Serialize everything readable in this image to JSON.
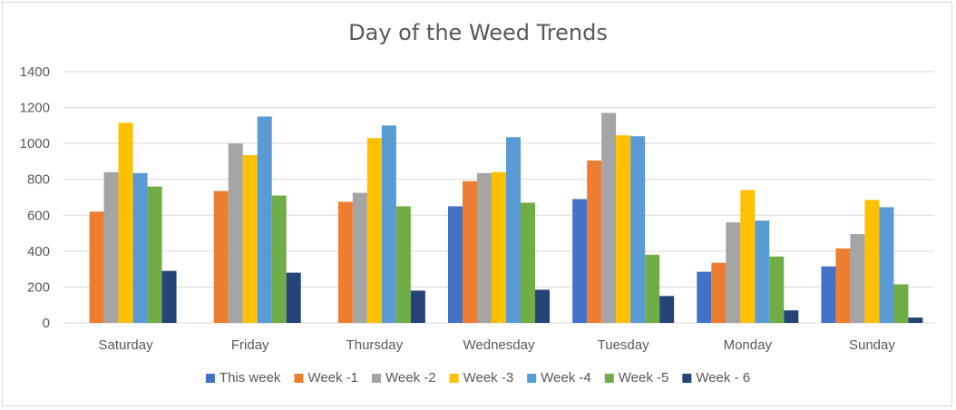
{
  "chart_data": {
    "type": "bar",
    "title": "Day of the Weed Trends",
    "xlabel": "",
    "ylabel": "",
    "ylim": [
      0,
      1400
    ],
    "yticks": [
      0,
      200,
      400,
      600,
      800,
      1000,
      1200,
      1400
    ],
    "grid": true,
    "legend_position": "bottom",
    "categories": [
      "Saturday",
      "Friday",
      "Thursday",
      "Wednesday",
      "Tuesday",
      "Monday",
      "Sunday"
    ],
    "series": [
      {
        "name": "This week",
        "color": "#4472C4",
        "values": [
          null,
          null,
          null,
          650,
          690,
          285,
          315
        ]
      },
      {
        "name": "Week -1",
        "color": "#ED7D31",
        "values": [
          620,
          735,
          675,
          790,
          905,
          335,
          415
        ]
      },
      {
        "name": "Week -2",
        "color": "#A5A5A5",
        "values": [
          840,
          1000,
          725,
          835,
          1170,
          560,
          495
        ]
      },
      {
        "name": "Week -3",
        "color": "#FFC000",
        "values": [
          1115,
          935,
          1030,
          840,
          1045,
          740,
          685
        ]
      },
      {
        "name": "Week -4",
        "color": "#5B9BD5",
        "values": [
          835,
          1150,
          1100,
          1035,
          1040,
          570,
          645
        ]
      },
      {
        "name": "Week -5",
        "color": "#70AD47",
        "values": [
          760,
          710,
          650,
          670,
          380,
          370,
          215
        ]
      },
      {
        "name": "Week - 6",
        "color": "#264478",
        "values": [
          290,
          280,
          180,
          185,
          150,
          70,
          30
        ]
      }
    ]
  }
}
